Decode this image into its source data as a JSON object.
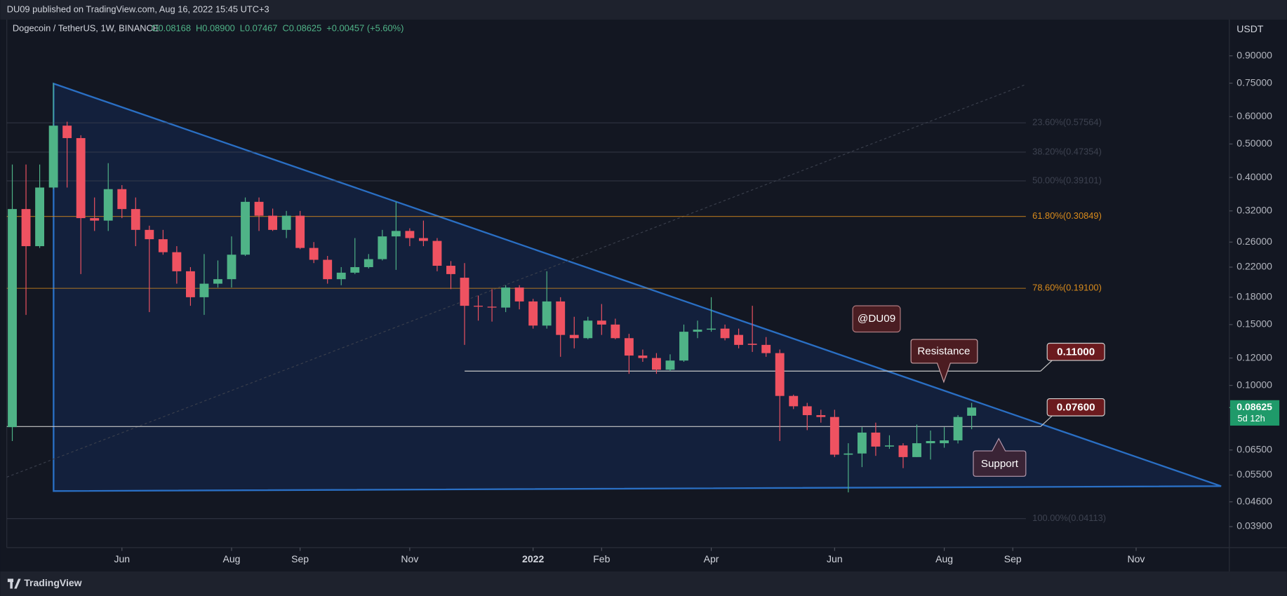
{
  "header": {
    "published": "DU09 published on TradingView.com, Aug 16, 2022 15:45 UTC+3",
    "symbol": "Dogecoin / TetherUS, 1W, BINANCE",
    "ohlc": [
      "O0.08168",
      "H0.08900",
      "L0.07467",
      "C0.08625",
      "+0.00457 (+5.60%)"
    ]
  },
  "footer": {
    "brand": "TradingView"
  },
  "chart_data": {
    "type": "candlestick",
    "log_scale": true,
    "y_unit": "USDT",
    "categories": [
      null,
      null,
      null,
      null,
      null,
      null,
      null,
      null,
      null,
      null,
      null,
      null,
      null,
      null,
      null,
      null,
      null,
      null,
      null,
      null,
      null,
      null,
      null,
      null,
      null,
      null,
      null,
      null,
      null,
      null,
      null,
      null,
      null,
      null,
      null,
      null,
      null,
      null,
      null,
      null,
      null,
      null,
      null,
      null,
      null,
      null,
      null,
      null,
      null,
      null,
      null,
      null,
      null,
      null,
      null,
      null,
      null,
      null,
      null,
      null,
      null,
      null,
      null,
      null,
      null,
      null,
      null,
      null,
      null,
      null,
      null
    ],
    "open": [
      0.0757,
      0.324,
      0.253,
      0.374,
      0.565,
      0.52,
      0.305,
      0.3,
      0.37,
      0.324,
      0.282,
      0.265,
      0.243,
      0.214,
      0.18,
      0.197,
      0.203,
      0.239,
      0.34,
      0.31,
      0.282,
      0.31,
      0.25,
      0.231,
      0.203,
      0.212,
      0.22,
      0.232,
      0.27,
      0.28,
      0.267,
      0.262,
      0.222,
      0.205,
      0.17,
      0.169,
      0.168,
      0.192,
      0.175,
      0.149,
      0.175,
      0.14,
      0.137,
      0.154,
      0.15,
      0.137,
      0.122,
      0.12,
      0.111,
      0.118,
      0.143,
      0.145,
      0.146,
      0.14,
      0.132,
      0.131,
      0.124,
      0.0932,
      0.087,
      0.082,
      0.081,
      0.063,
      0.0635,
      0.073,
      0.0665,
      0.067,
      0.062,
      0.068,
      0.068,
      0.0693,
      0.08168
    ],
    "high": [
      0.436,
      0.436,
      0.436,
      0.75,
      0.58,
      0.53,
      0.35,
      0.44,
      0.38,
      0.35,
      0.29,
      0.282,
      0.253,
      0.22,
      0.24,
      0.23,
      0.27,
      0.35,
      0.35,
      0.325,
      0.32,
      0.32,
      0.26,
      0.237,
      0.22,
      0.267,
      0.24,
      0.282,
      0.34,
      0.285,
      0.3,
      0.267,
      0.229,
      0.226,
      0.182,
      0.19,
      0.195,
      0.195,
      0.178,
      0.214,
      0.18,
      0.158,
      0.158,
      0.172,
      0.156,
      0.141,
      0.127,
      0.124,
      0.123,
      0.15,
      0.154,
      0.18,
      0.15,
      0.146,
      0.17,
      0.138,
      0.127,
      0.094,
      0.089,
      0.085,
      0.085,
      0.068,
      0.0757,
      0.078,
      0.0717,
      0.068,
      0.077,
      0.074,
      0.0757,
      0.082,
      0.089
    ],
    "low": [
      0.069,
      0.16,
      0.25,
      0.37,
      0.374,
      0.21,
      0.28,
      0.28,
      0.305,
      0.253,
      0.163,
      0.239,
      0.197,
      0.17,
      0.16,
      0.192,
      0.192,
      0.237,
      0.28,
      0.28,
      0.267,
      0.248,
      0.226,
      0.197,
      0.195,
      0.21,
      0.218,
      0.23,
      0.216,
      0.253,
      0.253,
      0.214,
      0.19,
      0.131,
      0.154,
      0.153,
      0.163,
      0.166,
      0.146,
      0.146,
      0.121,
      0.128,
      0.136,
      0.14,
      0.136,
      0.108,
      0.117,
      0.108,
      0.11,
      0.117,
      0.137,
      0.143,
      0.135,
      0.128,
      0.125,
      0.121,
      0.069,
      0.0854,
      0.0742,
      0.078,
      0.062,
      0.049,
      0.058,
      0.0625,
      0.0655,
      0.0576,
      0.062,
      0.061,
      0.066,
      0.0679,
      0.07467
    ],
    "close": [
      0.324,
      0.253,
      0.374,
      0.565,
      0.52,
      0.305,
      0.3,
      0.37,
      0.324,
      0.282,
      0.265,
      0.243,
      0.214,
      0.18,
      0.197,
      0.203,
      0.239,
      0.34,
      0.31,
      0.282,
      0.31,
      0.25,
      0.231,
      0.203,
      0.212,
      0.22,
      0.232,
      0.27,
      0.28,
      0.267,
      0.262,
      0.222,
      0.21,
      0.17,
      0.169,
      0.168,
      0.192,
      0.175,
      0.149,
      0.175,
      0.14,
      0.137,
      0.154,
      0.15,
      0.137,
      0.122,
      0.12,
      0.111,
      0.118,
      0.143,
      0.145,
      0.146,
      0.137,
      0.131,
      0.131,
      0.124,
      0.0932,
      0.087,
      0.082,
      0.081,
      0.063,
      0.0635,
      0.073,
      0.0665,
      0.067,
      0.062,
      0.068,
      0.069,
      0.0693,
      0.081,
      0.08625
    ],
    "up_color": "#4fb387",
    "down_color": "#ef5261",
    "ylim": [
      0.0339,
      1.139
    ],
    "yticks": [
      {
        "value": 0.9,
        "label": "0.90000"
      },
      {
        "value": 0.75,
        "label": "0.75000"
      },
      {
        "value": 0.6,
        "label": "0.60000"
      },
      {
        "value": 0.5,
        "label": "0.50000"
      },
      {
        "value": 0.4,
        "label": "0.40000"
      },
      {
        "value": 0.32,
        "label": "0.32000"
      },
      {
        "value": 0.26,
        "label": "0.26000"
      },
      {
        "value": 0.22,
        "label": "0.22000"
      },
      {
        "value": 0.18,
        "label": "0.18000"
      },
      {
        "value": 0.15,
        "label": "0.15000"
      },
      {
        "value": 0.12,
        "label": "0.12000"
      },
      {
        "value": 0.1,
        "label": "0.10000"
      },
      {
        "value": 0.065,
        "label": "0.06500"
      },
      {
        "value": 0.055,
        "label": "0.05500"
      },
      {
        "value": 0.046,
        "label": "0.04600"
      },
      {
        "value": 0.039,
        "label": "0.03900"
      }
    ],
    "xlim": [
      -0.4,
      88.8
    ],
    "xticks": [
      {
        "value": 8,
        "label": "Jun"
      },
      {
        "value": 16,
        "label": "Aug"
      },
      {
        "value": 21,
        "label": "Sep"
      },
      {
        "value": 29,
        "label": "Nov"
      },
      {
        "value": 38,
        "label": "2022"
      },
      {
        "value": 43,
        "label": "Feb"
      },
      {
        "value": 51,
        "label": "Apr"
      },
      {
        "value": 60,
        "label": "Jun"
      },
      {
        "value": 68,
        "label": "Aug"
      },
      {
        "value": 73,
        "label": "Sep"
      },
      {
        "value": 82,
        "label": "Nov"
      }
    ],
    "fib_levels": [
      {
        "label": "23.60%(0.57564)",
        "value": 0.57564,
        "color": "#3d4250"
      },
      {
        "label": "38.20%(0.47354)",
        "value": 0.47354,
        "color": "#3d4250"
      },
      {
        "label": "50.00%(0.39101)",
        "value": 0.39101,
        "color": "#3d4250"
      },
      {
        "label": "61.80%(0.30849)",
        "value": 0.30849,
        "color": "#d98b1c"
      },
      {
        "label": "78.60%(0.19100)",
        "value": 0.191,
        "color": "#d98b1c"
      },
      {
        "label": "100.00%(0.04113)",
        "value": 0.04113,
        "color": "#3d4250"
      }
    ],
    "levels": [
      {
        "value": 0.11,
        "label": "0.11000"
      },
      {
        "value": 0.076,
        "label": "0.07600"
      }
    ],
    "last_price": {
      "value": 0.08625,
      "label": "0.08625"
    },
    "countdown": "5d 12h",
    "annotations": {
      "resistance": "Resistance",
      "support": "Support",
      "author": "@DU09"
    }
  }
}
